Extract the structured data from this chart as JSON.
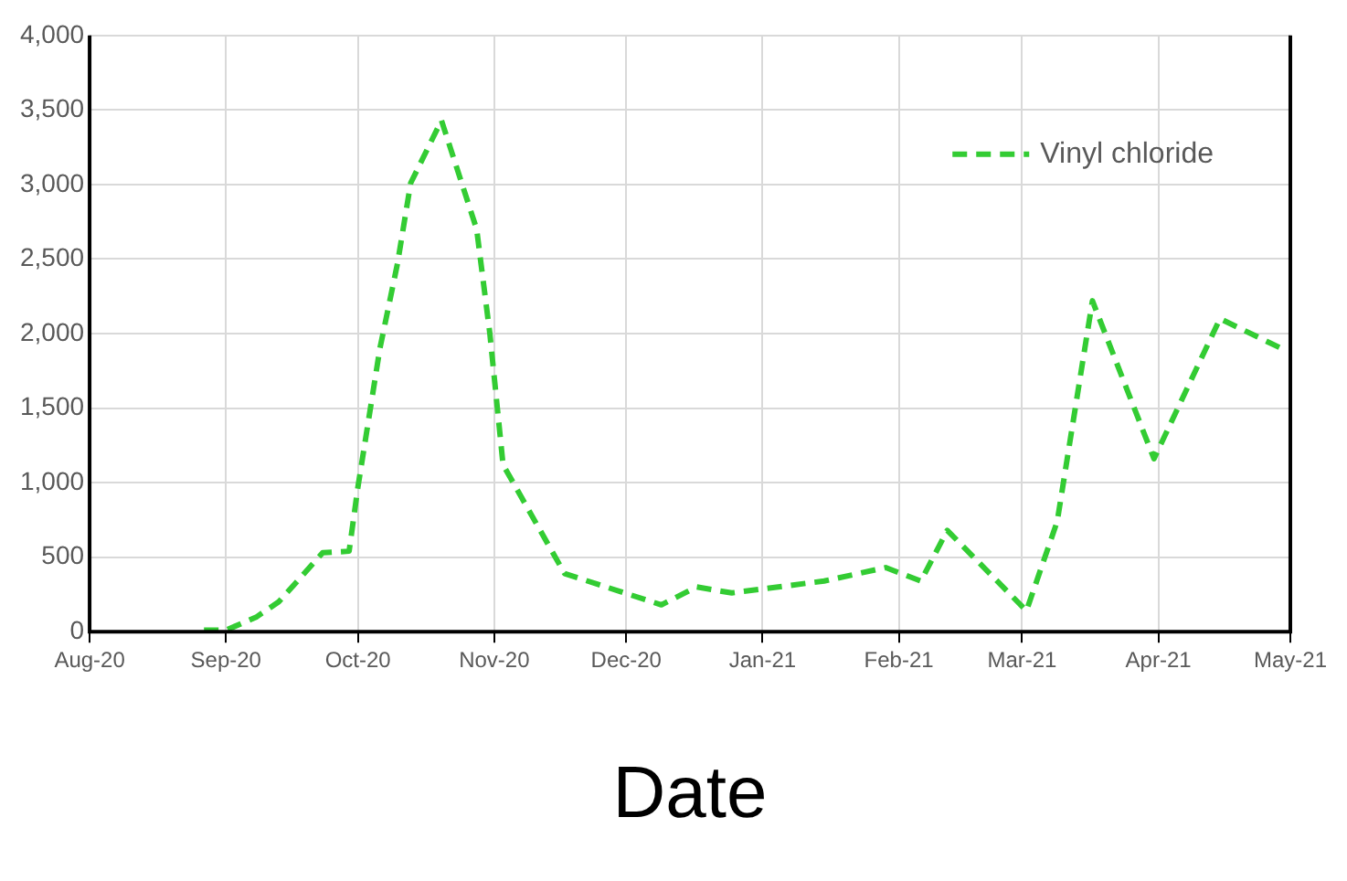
{
  "chart_data": {
    "type": "line",
    "xlabel": "Date",
    "x": [
      "2020-08-27",
      "2020-09-01",
      "2020-09-08",
      "2020-09-13",
      "2020-09-23",
      "2020-09-29",
      "2020-10-01",
      "2020-10-06",
      "2020-10-10",
      "2020-10-13",
      "2020-10-20",
      "2020-10-28",
      "2020-10-31",
      "2020-11-03",
      "2020-11-17",
      "2020-12-09",
      "2020-12-17",
      "2020-12-25",
      "2021-01-15",
      "2021-01-29",
      "2021-02-06",
      "2021-02-12",
      "2021-03-02",
      "2021-03-09",
      "2021-03-17",
      "2021-03-31",
      "2021-04-15",
      "2021-04-29"
    ],
    "series": [
      {
        "name": "Vinyl chloride",
        "color": "#33cc33",
        "values": [
          10,
          10,
          100,
          200,
          530,
          540,
          970,
          1900,
          2470,
          3010,
          3430,
          2700,
          2000,
          1120,
          390,
          180,
          300,
          260,
          340,
          430,
          340,
          680,
          140,
          740,
          2220,
          1160,
          2100,
          1900
        ]
      }
    ],
    "xlim": [
      "2020-08-01",
      "2021-05-01"
    ],
    "xticks": [
      {
        "value": "2020-08-01",
        "label": "Aug-20"
      },
      {
        "value": "2020-09-01",
        "label": "Sep-20"
      },
      {
        "value": "2020-10-01",
        "label": "Oct-20"
      },
      {
        "value": "2020-11-01",
        "label": "Nov-20"
      },
      {
        "value": "2020-12-01",
        "label": "Dec-20"
      },
      {
        "value": "2021-01-01",
        "label": "Jan-21"
      },
      {
        "value": "2021-02-01",
        "label": "Feb-21"
      },
      {
        "value": "2021-03-01",
        "label": "Mar-21"
      },
      {
        "value": "2021-04-01",
        "label": "Apr-21"
      },
      {
        "value": "2021-05-01",
        "label": "May-21"
      }
    ],
    "ylim": [
      0,
      4000
    ],
    "yticks": [
      {
        "value": 0,
        "label": "0"
      },
      {
        "value": 500,
        "label": "500"
      },
      {
        "value": 1000,
        "label": "1,000"
      },
      {
        "value": 1500,
        "label": "1,500"
      },
      {
        "value": 2000,
        "label": "2,000"
      },
      {
        "value": 2500,
        "label": "2,500"
      },
      {
        "value": 3000,
        "label": "3,000"
      },
      {
        "value": 3500,
        "label": "3,500"
      },
      {
        "value": 4000,
        "label": "4,000"
      }
    ],
    "grid": true,
    "legend": "top right",
    "line_style": "dashed",
    "marker": "none"
  }
}
